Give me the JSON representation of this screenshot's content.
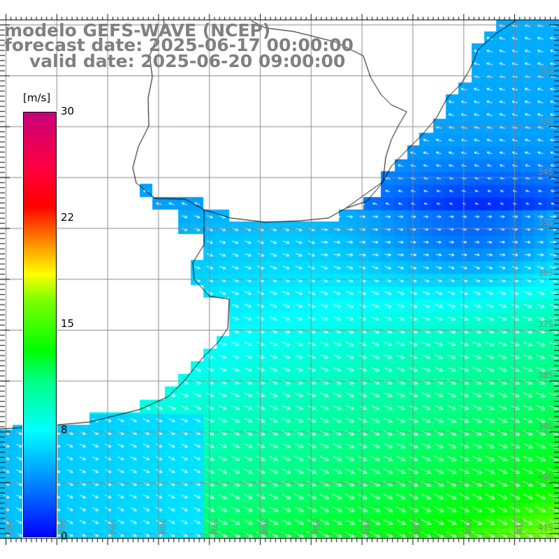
{
  "title": {
    "line1": "modelo GEFS-WAVE (NCEP)",
    "line2": "forecast date: 2025-06-17 00:00:00",
    "line3": "valid date: 2025-06-20 09:00:00"
  },
  "colorbar": {
    "unit": "[m/s]",
    "ticks": [
      "30",
      "22",
      "15",
      "8",
      "0"
    ],
    "colors": [
      "#0000ff",
      "#00ffff",
      "#00ff00",
      "#ffff00",
      "#ff0000",
      "#c8007a"
    ]
  },
  "lat_labels": [
    "32S",
    "33S",
    "34S",
    "35S",
    "36S",
    "37S",
    "38S",
    "39S",
    "40S",
    "41S"
  ],
  "lon_labels": [
    "61W",
    "60W",
    "59W",
    "58W",
    "57W",
    "56W",
    "55W",
    "54W",
    "53W",
    "52W",
    "51W"
  ],
  "colors": {
    "grid": "#888888",
    "land": "#ffffff",
    "coast": "#000000",
    "arrow": "#ffffff"
  }
}
